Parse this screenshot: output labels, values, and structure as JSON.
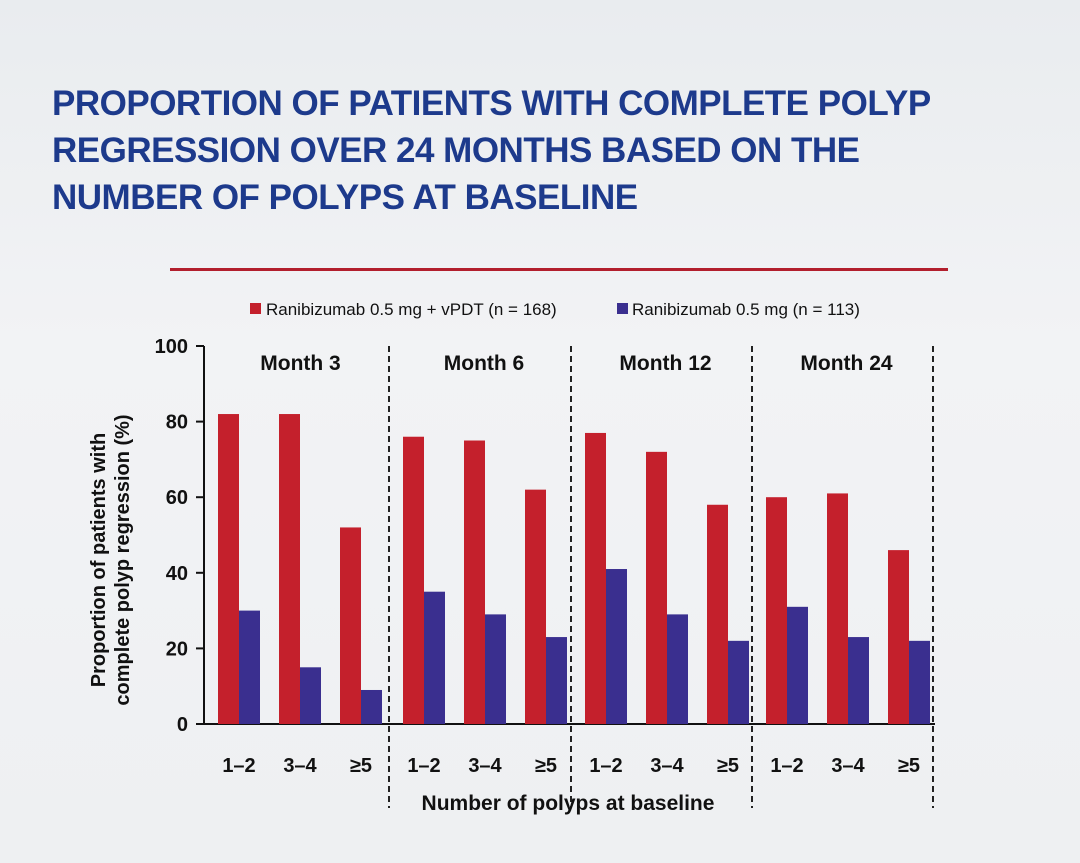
{
  "title_lines": [
    "PROPORTION OF PATIENTS WITH COMPLETE POLYP",
    "REGRESSION OVER 24 MONTHS BASED ON THE",
    "NUMBER OF POLYPS AT BASELINE"
  ],
  "colors": {
    "title": "#1d3a8c",
    "divider": "#b21f2d",
    "series1": "#c4202c",
    "series2": "#3a2f8f"
  },
  "chart_data": {
    "type": "bar",
    "xlabel": "Number of polyps at baseline",
    "ylabel_lines": [
      "Proportion of patients with",
      "complete polyp regression (%)"
    ],
    "ylim": [
      0,
      100
    ],
    "yticks": [
      "0",
      "20",
      "40",
      "60",
      "80",
      "100"
    ],
    "panels": [
      "Month 3",
      "Month 6",
      "Month 12",
      "Month 24"
    ],
    "categories": [
      "1–2",
      "3–4",
      "≥5"
    ],
    "legend_position": "top",
    "series": [
      {
        "name": "Ranibizumab 0.5 mg + vPDT (n = 168)",
        "values": [
          [
            82,
            82,
            52
          ],
          [
            76,
            75,
            62
          ],
          [
            77,
            72,
            58
          ],
          [
            60,
            61,
            46
          ]
        ]
      },
      {
        "name": "Ranibizumab 0.5 mg (n = 113)",
        "values": [
          [
            30,
            15,
            9
          ],
          [
            35,
            29,
            23
          ],
          [
            41,
            29,
            22
          ],
          [
            31,
            23,
            22
          ]
        ]
      }
    ]
  }
}
